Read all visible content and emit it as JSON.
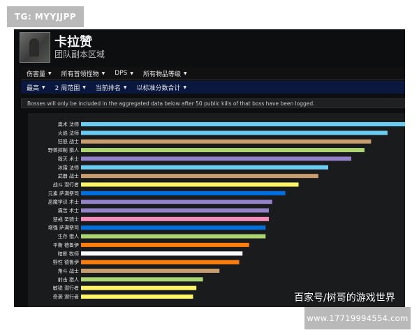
{
  "watermark_top": "TG: MYYJJPP",
  "watermark_inner": "百家号/树哥的游戏世界",
  "watermark_bottom": "www.17719994554.com",
  "header": {
    "title": "卡拉赞",
    "subtitle": "团队副本区域"
  },
  "nav_primary": [
    {
      "label": "伤害量"
    },
    {
      "label": "所有首领怪物"
    },
    {
      "label": "DPS"
    },
    {
      "label": "所有物品等级"
    }
  ],
  "nav_secondary": [
    {
      "label": "最高"
    },
    {
      "label": "2 周范围"
    },
    {
      "label": "当前排名"
    },
    {
      "label": "以标准分数合计"
    }
  ],
  "notice": "Bosses will only be included in the aggregated data below after 50 public kills of that boss have been logged.",
  "colors": {
    "mage": "#69ccf0",
    "hunter": "#abd473",
    "warrior": "#c79c6e",
    "warlock": "#9482c9",
    "rogue": "#fff569",
    "shaman": "#0070de",
    "paladin": "#f58cba",
    "druid": "#ff7d0a",
    "priest": "#ffffff"
  },
  "chart_data": {
    "type": "bar",
    "orientation": "horizontal",
    "categories": [
      "奥术 法师",
      "火焰 法师",
      "狂怒 战士",
      "野兽控制 猎人",
      "毁灭 术士",
      "冰霜 法师",
      "武器 战士",
      "战斗 潜行者",
      "元素 萨满祭司",
      "恶魔学识 术士",
      "痛苦 术士",
      "惩戒 圣骑士",
      "增强 萨满祭司",
      "生存 猎人",
      "平衡 德鲁伊",
      "暗影 牧师",
      "野性 德鲁伊",
      "角斗 战士",
      "射击 猎人",
      "敏锐 潜行者",
      "奇袭 潜行者"
    ],
    "values": [
      100,
      93,
      88,
      86,
      82,
      75,
      72,
      66,
      62,
      58,
      57,
      57,
      56,
      56,
      51,
      49,
      48,
      42,
      37,
      35,
      34
    ],
    "bar_colors": [
      "mage",
      "mage",
      "warrior",
      "hunter",
      "warlock",
      "mage",
      "warrior",
      "rogue",
      "shaman",
      "warlock",
      "warlock",
      "paladin",
      "shaman",
      "hunter",
      "druid",
      "priest",
      "druid",
      "warrior",
      "hunter",
      "rogue",
      "rogue"
    ],
    "xlim": [
      0,
      100
    ],
    "grid": false
  }
}
